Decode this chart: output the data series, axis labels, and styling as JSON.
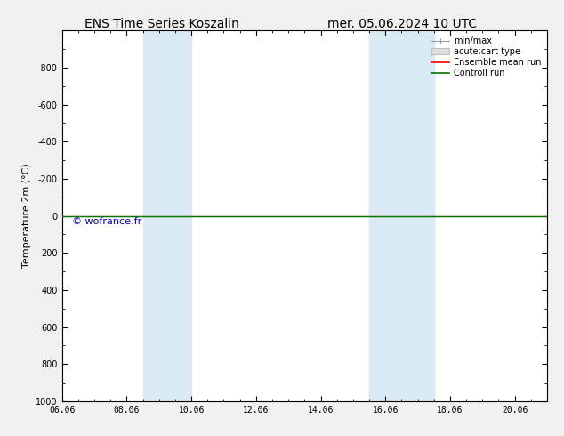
{
  "title_left": "ENS Time Series Koszalin",
  "title_right": "mer. 05.06.2024 10 UTC",
  "ylabel": "Temperature 2m (°C)",
  "xlabel": "",
  "xtick_labels": [
    "06.06",
    "08.06",
    "10.06",
    "12.06",
    "14.06",
    "16.06",
    "18.06",
    "20.06"
  ],
  "xtick_positions": [
    0,
    2,
    4,
    6,
    8,
    10,
    12,
    14
  ],
  "xlim": [
    0,
    15
  ],
  "ylim_bottom": -1000,
  "ylim_top": 1000,
  "ytick_values": [
    -800,
    -600,
    -400,
    -200,
    0,
    200,
    400,
    600,
    800,
    1000
  ],
  "shaded_bands": [
    {
      "x_start": 2.5,
      "x_end": 4.0
    },
    {
      "x_start": 9.5,
      "x_end": 11.5
    }
  ],
  "band_color": "#daeaf5",
  "watermark": "© wofrance.fr",
  "watermark_color": "#0000cc",
  "green_line_color": "#007700",
  "red_line_color": "#ff0000",
  "gray_line_color": "#999999",
  "bg_color": "#f0f0f0",
  "plot_bg_color": "#ffffff",
  "title_fontsize": 10,
  "axis_label_fontsize": 8,
  "tick_fontsize": 7,
  "legend_fontsize": 7
}
